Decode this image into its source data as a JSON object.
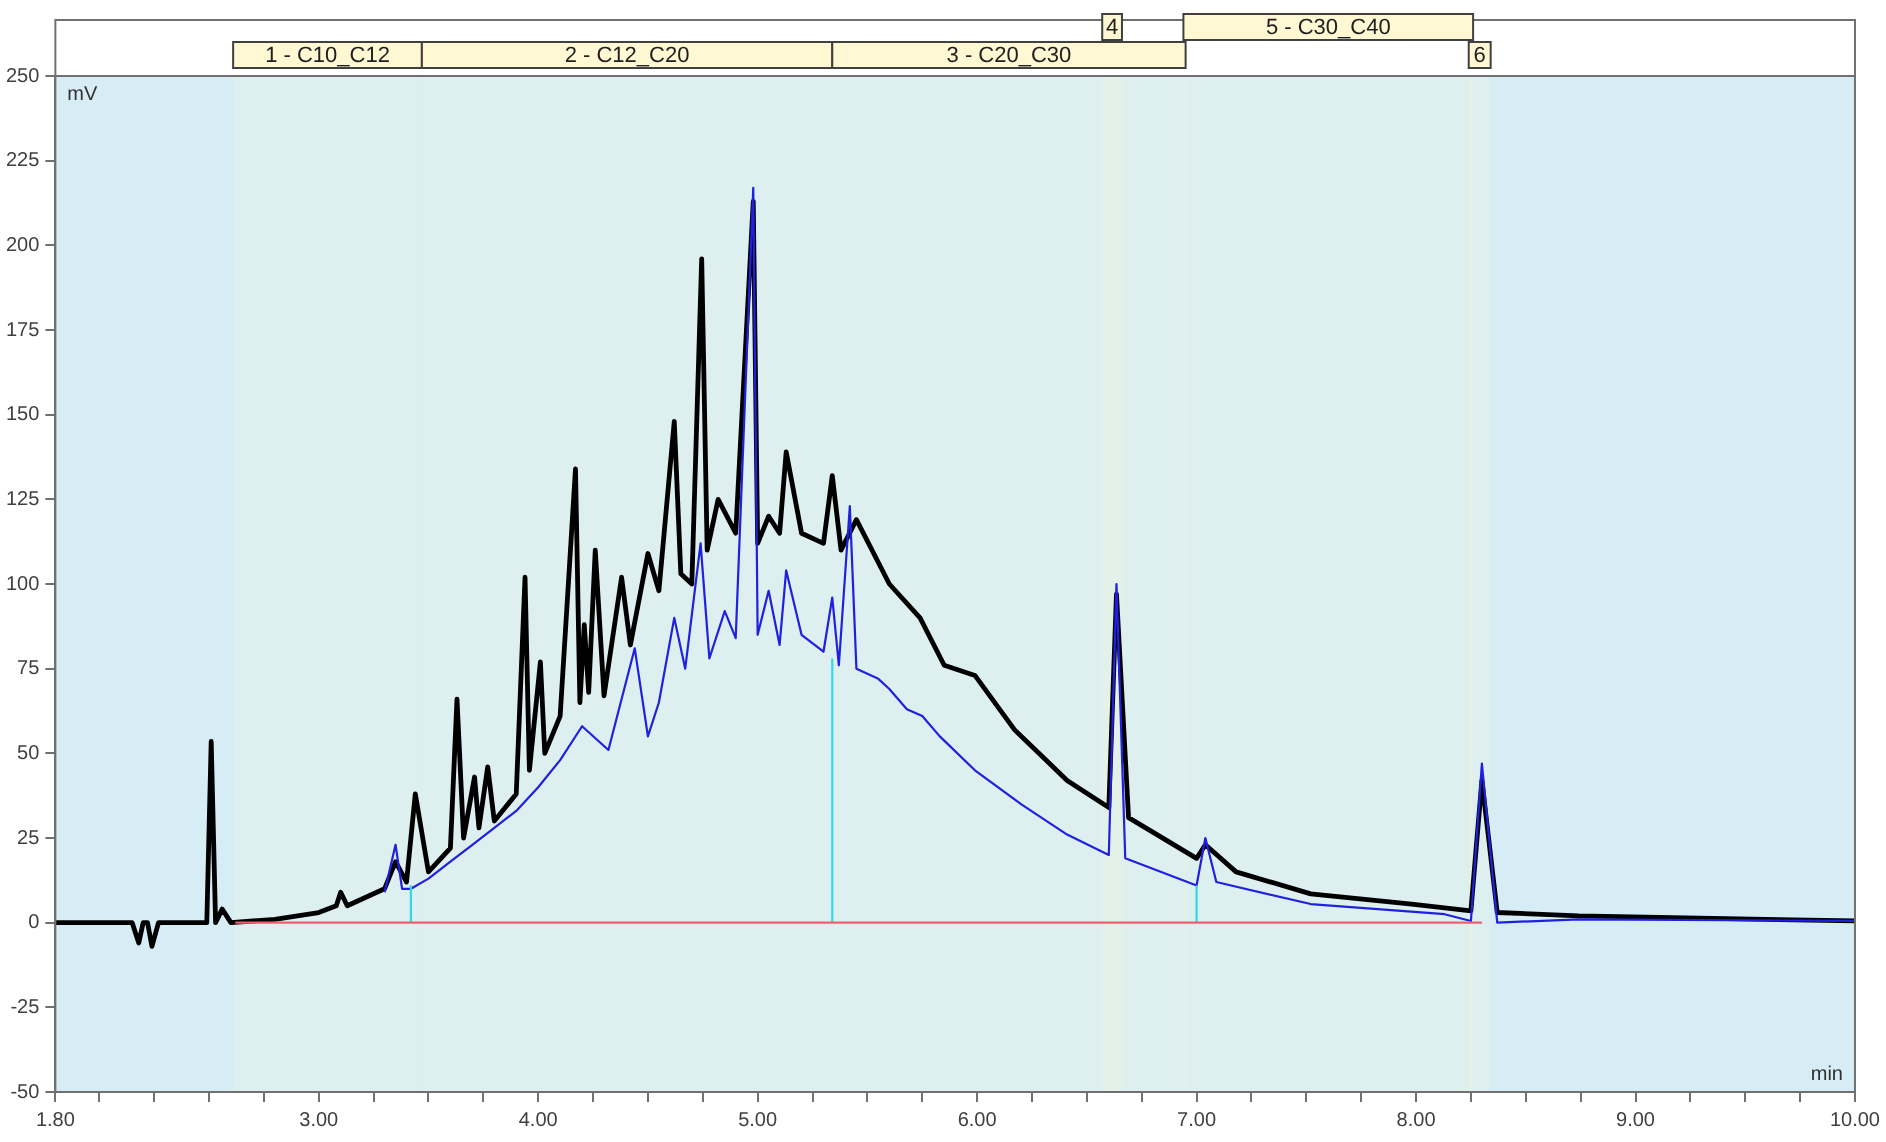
{
  "chart_data": {
    "type": "line",
    "xlabel": "min",
    "ylabel": "mV",
    "xlim": [
      1.8,
      10
    ],
    "ylim": [
      -50,
      250
    ],
    "xticks": [
      {
        "value": 1.8,
        "label": "1.80"
      },
      {
        "value": 2,
        "label": null
      },
      {
        "value": 2.25,
        "label": null
      },
      {
        "value": 2.5,
        "label": null
      },
      {
        "value": 2.75,
        "label": null
      },
      {
        "value": 3,
        "label": "3.00"
      },
      {
        "value": 3.25,
        "label": null
      },
      {
        "value": 3.5,
        "label": null
      },
      {
        "value": 3.75,
        "label": null
      },
      {
        "value": 4,
        "label": "4.00"
      },
      {
        "value": 4.25,
        "label": null
      },
      {
        "value": 4.5,
        "label": null
      },
      {
        "value": 4.75,
        "label": null
      },
      {
        "value": 5,
        "label": "5.00"
      },
      {
        "value": 5.25,
        "label": null
      },
      {
        "value": 5.5,
        "label": null
      },
      {
        "value": 5.75,
        "label": null
      },
      {
        "value": 6,
        "label": "6.00"
      },
      {
        "value": 6.25,
        "label": null
      },
      {
        "value": 6.5,
        "label": null
      },
      {
        "value": 6.75,
        "label": null
      },
      {
        "value": 7,
        "label": "7.00"
      },
      {
        "value": 7.25,
        "label": null
      },
      {
        "value": 7.5,
        "label": null
      },
      {
        "value": 7.75,
        "label": null
      },
      {
        "value": 8,
        "label": "8.00"
      },
      {
        "value": 8.25,
        "label": null
      },
      {
        "value": 8.5,
        "label": null
      },
      {
        "value": 8.75,
        "label": null
      },
      {
        "value": 9,
        "label": "9.00"
      },
      {
        "value": 9.25,
        "label": null
      },
      {
        "value": 9.5,
        "label": null
      },
      {
        "value": 9.75,
        "label": null
      },
      {
        "value": 10,
        "label": "10.00"
      }
    ],
    "yticks": [
      -50,
      -25,
      0,
      25,
      50,
      75,
      100,
      125,
      150,
      175,
      200,
      225,
      250
    ],
    "grid": false,
    "legend": false,
    "marker": "none",
    "line_style": "solid",
    "series": [
      {
        "color": "#ee6070",
        "x": [
          2.62,
          8.3
        ],
        "values": [
          0,
          0
        ]
      },
      {
        "color": "#30d8e8",
        "x": [
          3.42,
          3.42
        ],
        "values": [
          0,
          11
        ]
      },
      {
        "color": "#30d8e8",
        "x": [
          5.34,
          5.34
        ],
        "values": [
          0,
          78
        ]
      },
      {
        "color": "#30d8e8",
        "x": [
          7.0,
          7.0
        ],
        "values": [
          0,
          11
        ]
      },
      {
        "color": "#2020e0",
        "x": [
          3.3,
          3.35,
          3.38,
          3.42,
          3.5,
          3.6,
          3.7,
          3.8,
          3.9,
          4.0,
          4.1,
          4.2,
          4.32,
          4.44,
          4.5,
          4.55,
          4.62,
          4.67,
          4.74,
          4.78,
          4.85,
          4.9,
          4.98,
          5.0,
          5.05,
          5.1,
          5.13,
          5.2,
          5.3,
          5.34,
          5.37,
          5.42,
          5.45,
          5.55,
          5.6,
          5.68,
          5.75,
          5.83,
          5.99,
          6.2,
          6.41,
          6.6,
          6.635,
          6.675,
          7.0,
          7.04,
          7.09,
          7.52,
          8.13,
          8.25,
          8.3,
          8.37,
          8.74,
          10.0
        ],
        "values": [
          9,
          23,
          10,
          10,
          13,
          18,
          23,
          28,
          33,
          40,
          48,
          58,
          51,
          81,
          55,
          65,
          90,
          75,
          112,
          78,
          92,
          84,
          217,
          85,
          98,
          82,
          104,
          85,
          80,
          96,
          76,
          123,
          75,
          72,
          69,
          63,
          61,
          55,
          45,
          35,
          26,
          20,
          100,
          19,
          11,
          25,
          12,
          5.5,
          2.5,
          0.5,
          47,
          0,
          1,
          0.5
        ]
      },
      {
        "color": "#000000",
        "x": [
          1.8,
          2.15,
          2.18,
          2.2,
          2.22,
          2.24,
          2.27,
          2.49,
          2.51,
          2.53,
          2.56,
          2.6,
          2.8,
          3.0,
          3.08,
          3.1,
          3.13,
          3.3,
          3.35,
          3.4,
          3.44,
          3.5,
          3.6,
          3.63,
          3.66,
          3.71,
          3.73,
          3.77,
          3.8,
          3.9,
          3.94,
          3.96,
          4.01,
          4.03,
          4.1,
          4.17,
          4.19,
          4.21,
          4.23,
          4.26,
          4.3,
          4.38,
          4.42,
          4.5,
          4.55,
          4.62,
          4.65,
          4.7,
          4.745,
          4.77,
          4.82,
          4.9,
          4.98,
          5.0,
          5.05,
          5.1,
          5.13,
          5.2,
          5.3,
          5.34,
          5.38,
          5.45,
          5.6,
          5.74,
          5.85,
          5.99,
          6.17,
          6.41,
          6.6,
          6.635,
          6.69,
          7.0,
          7.04,
          7.18,
          7.52,
          7.98,
          8.25,
          8.3,
          8.37,
          8.74,
          10.0
        ],
        "values": [
          0,
          0,
          -6,
          0,
          0,
          -7,
          0,
          0,
          53.5,
          0,
          4,
          0,
          1,
          3,
          5,
          9,
          5,
          10,
          18,
          12,
          38,
          15,
          22,
          66,
          25,
          43,
          28,
          46,
          30,
          38,
          102,
          45,
          77,
          50,
          61,
          134,
          65,
          88,
          68,
          110,
          67,
          102,
          82,
          109,
          98,
          148,
          103,
          100,
          196,
          110,
          125,
          115,
          213,
          112,
          120,
          115,
          139,
          115,
          112,
          132,
          110,
          119,
          100,
          90,
          76,
          73,
          57,
          42,
          34,
          97,
          31,
          19,
          23,
          15,
          8.5,
          5.5,
          3.5,
          42,
          3,
          2,
          0.5
        ]
      }
    ],
    "bands": [
      {
        "axis": "x",
        "from": 2.61,
        "to": 3.47,
        "label": "1 - C10_C12",
        "color": "#fff8d2"
      },
      {
        "axis": "x",
        "from": 3.47,
        "to": 5.34,
        "label": "2 - C12_C20",
        "color": "#fff8d2"
      },
      {
        "axis": "x",
        "from": 5.34,
        "to": 6.95,
        "label": "3 - C20_C30",
        "color": "#fff8d2"
      },
      {
        "axis": "x",
        "from": 6.57,
        "to": 6.66,
        "label": "4",
        "color": "#fff8d2"
      },
      {
        "axis": "x",
        "from": 6.94,
        "to": 8.26,
        "label": "5 - C30_C40",
        "color": "#fff8d2"
      },
      {
        "axis": "x",
        "from": 8.24,
        "to": 8.34,
        "label": "6",
        "color": "#fff8d2"
      }
    ]
  }
}
